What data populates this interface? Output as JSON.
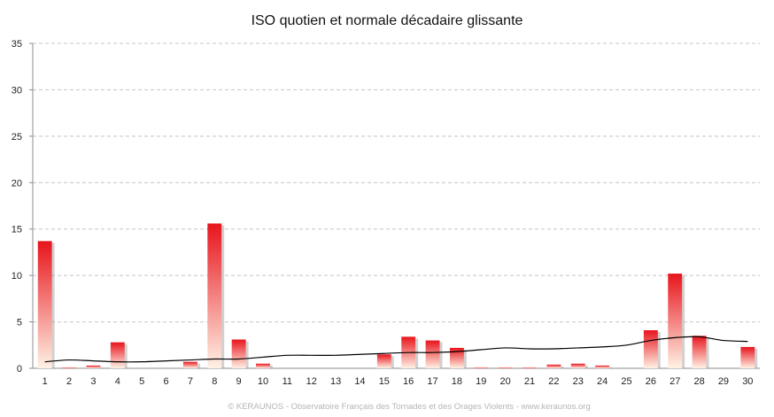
{
  "chart_data": {
    "type": "bar",
    "title": "ISO quotien et normale décadaire glissante",
    "credit": "© KERAUNOS - Observatoire Français des Tornades et des Orages Violents - www.keraunos.org",
    "xlabel": "",
    "ylabel": "",
    "ylim": [
      0,
      35
    ],
    "yticks": [
      0,
      5,
      10,
      15,
      20,
      25,
      30,
      35
    ],
    "grid": true,
    "legend": "none",
    "categories": [
      "1",
      "2",
      "3",
      "4",
      "5",
      "6",
      "7",
      "8",
      "9",
      "10",
      "11",
      "12",
      "13",
      "14",
      "15",
      "16",
      "17",
      "18",
      "19",
      "20",
      "21",
      "22",
      "23",
      "24",
      "25",
      "26",
      "27",
      "28",
      "29",
      "30"
    ],
    "series": [
      {
        "kind": "bar",
        "values": [
          13.7,
          0.1,
          0.3,
          2.8,
          0,
          0,
          0.7,
          15.6,
          3.1,
          0.5,
          0,
          0,
          0,
          0,
          1.5,
          3.4,
          3.0,
          2.2,
          0.1,
          0.1,
          0.1,
          0.4,
          0.5,
          0.3,
          0,
          4.1,
          10.2,
          3.5,
          0,
          2.3
        ]
      },
      {
        "kind": "line",
        "values": [
          0.7,
          0.9,
          0.8,
          0.7,
          0.7,
          0.8,
          0.9,
          1.0,
          1.0,
          1.2,
          1.4,
          1.4,
          1.4,
          1.5,
          1.6,
          1.7,
          1.7,
          1.8,
          2.0,
          2.2,
          2.1,
          2.1,
          2.2,
          2.3,
          2.5,
          3.0,
          3.3,
          3.4,
          3.0,
          2.9
        ]
      }
    ],
    "colors": {
      "bar_top": "#e8141c",
      "bar_bottom": "#fff1e4",
      "line": "#000000",
      "grid": "#c4c4c4",
      "axis": "#8c8c8c"
    }
  }
}
